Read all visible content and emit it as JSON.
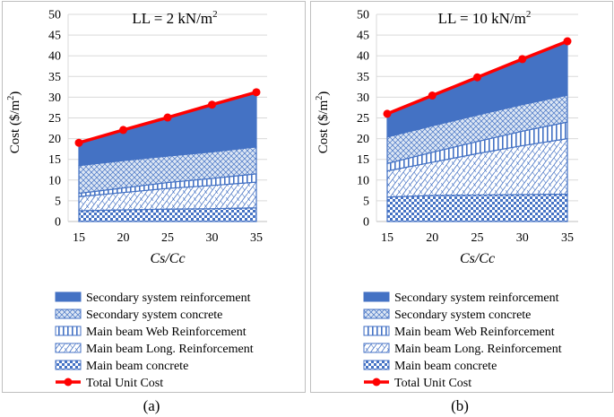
{
  "chart_data": [
    {
      "type": "area",
      "stacked": true,
      "title": "LL = 2 kN/m",
      "title_superscript": "2",
      "caption": "(a)",
      "xlabel": "Cs/Cc",
      "ylabel": "Cost ($/m",
      "ylabel_superscript": "2",
      "ylabel_suffix": ")",
      "x": [
        15,
        20,
        25,
        30,
        35
      ],
      "ylim": [
        0,
        50
      ],
      "yticks": [
        0,
        5,
        10,
        15,
        20,
        25,
        30,
        35,
        40,
        45,
        50
      ],
      "grid": true,
      "series": [
        {
          "name": "Main beam concrete",
          "values": [
            2.6,
            2.8,
            3.0,
            3.1,
            3.3
          ]
        },
        {
          "name": "Main beam Long. Reinforcement",
          "values": [
            3.4,
            4.2,
            5.0,
            5.6,
            6.2
          ]
        },
        {
          "name": "Main beam Web Reinforcement",
          "values": [
            0.8,
            1.1,
            1.4,
            1.7,
            2.0
          ]
        },
        {
          "name": "Secondary system concrete",
          "values": [
            6.7,
            6.6,
            6.4,
            6.4,
            6.5
          ]
        },
        {
          "name": "Secondary system reinforcement",
          "values": [
            5.5,
            7.4,
            9.3,
            11.4,
            13.2
          ]
        }
      ],
      "total": {
        "name": "Total Unit Cost",
        "values": [
          19.0,
          22.1,
          25.1,
          28.2,
          31.2
        ]
      }
    },
    {
      "type": "area",
      "stacked": true,
      "title": "LL = 10 kN/m",
      "title_superscript": "2",
      "caption": "(b)",
      "xlabel": "Cs/Cc",
      "ylabel": "Cost ($/m",
      "ylabel_superscript": "2",
      "ylabel_suffix": ")",
      "x": [
        15,
        20,
        25,
        30,
        35
      ],
      "ylim": [
        0,
        50
      ],
      "yticks": [
        0,
        5,
        10,
        15,
        20,
        25,
        30,
        35,
        40,
        45,
        50
      ],
      "grid": true,
      "series": [
        {
          "name": "Main beam concrete",
          "values": [
            5.9,
            6.3,
            6.4,
            6.5,
            6.6
          ]
        },
        {
          "name": "Main beam Long. Reinforcement",
          "values": [
            6.3,
            8.0,
            10.0,
            11.8,
            13.4
          ]
        },
        {
          "name": "Main beam Web Reinforcement",
          "values": [
            1.8,
            2.4,
            2.9,
            3.5,
            4.0
          ]
        },
        {
          "name": "Secondary system concrete",
          "values": [
            6.4,
            6.4,
            6.4,
            6.4,
            6.5
          ]
        },
        {
          "name": "Secondary system reinforcement",
          "values": [
            5.6,
            7.3,
            9.1,
            11.0,
            13.0
          ]
        }
      ],
      "total": {
        "name": "Total Unit Cost",
        "values": [
          26.0,
          30.4,
          34.8,
          39.2,
          43.5
        ]
      }
    }
  ],
  "legend_order": [
    "Secondary system reinforcement",
    "Secondary system concrete",
    "Main beam Web Reinforcement",
    "Main beam Long. Reinforcement",
    "Main beam concrete",
    "Total Unit Cost"
  ],
  "colors": {
    "line": "#ff0000",
    "fill_dark": "#4472c4",
    "edge": "#4472c4",
    "grid": "#d9d9d9",
    "border": "#bfbfbf",
    "axis": "#bfbfbf"
  }
}
